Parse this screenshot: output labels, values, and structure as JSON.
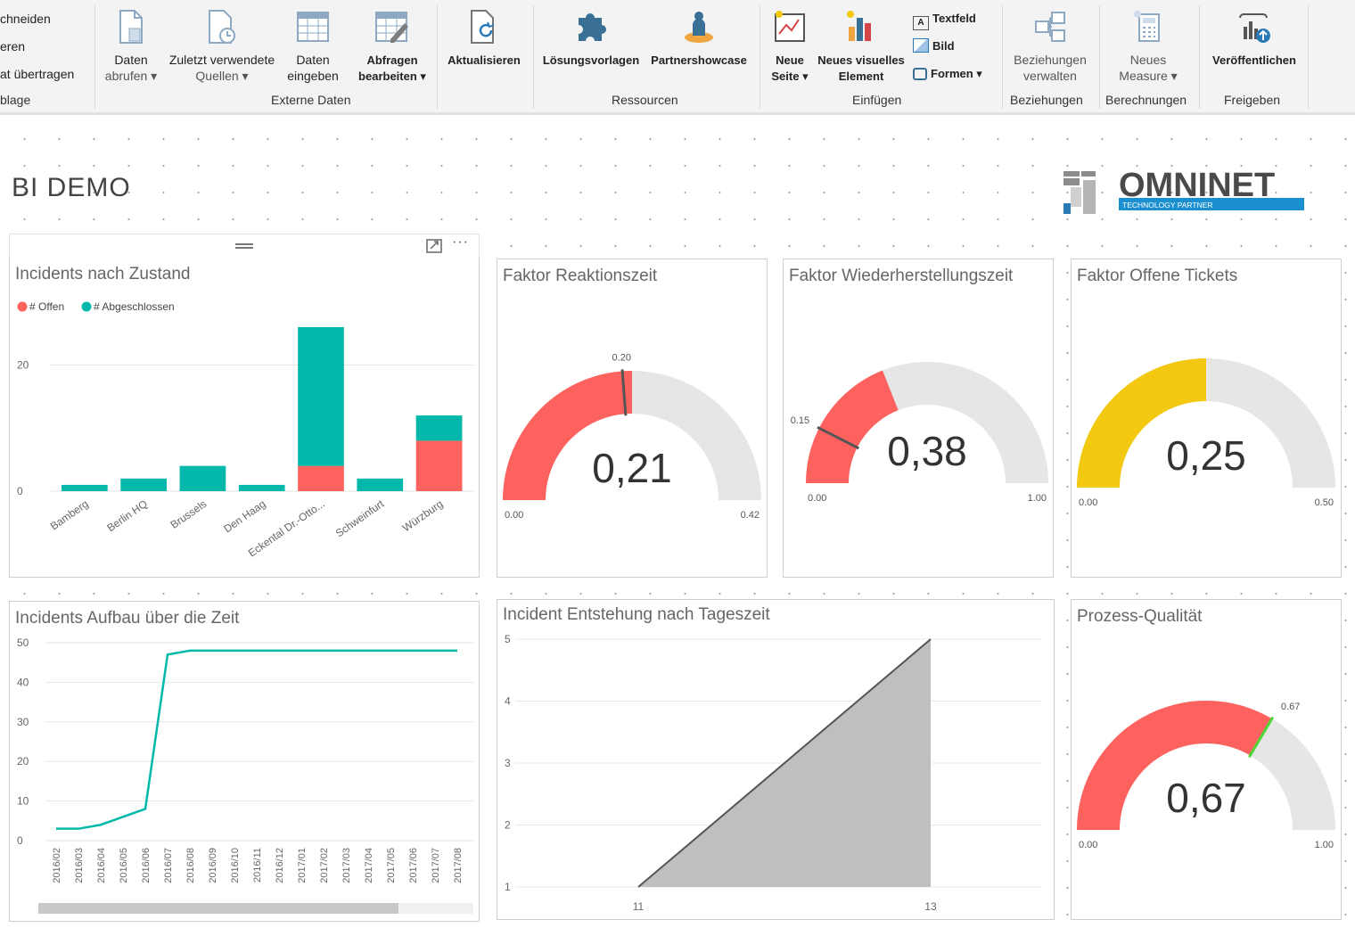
{
  "ribbon": {
    "clipboard": {
      "items": [
        "chneiden",
        "eren",
        "at übertragen"
      ],
      "group_label": "blage"
    },
    "external_data": {
      "group_label": "Externe Daten",
      "buttons": [
        {
          "line1": "Daten",
          "line2": "abrufen ▾"
        },
        {
          "line1": "Zuletzt verwendete",
          "line2": "Quellen ▾"
        },
        {
          "line1": "Daten",
          "line2": "eingeben"
        },
        {
          "line1": "Abfragen",
          "line2": "bearbeiten ▾"
        }
      ]
    },
    "refresh": {
      "label": "Aktualisieren"
    },
    "resources": {
      "group_label": "Ressourcen",
      "buttons": [
        {
          "label": "Lösungsvorlagen"
        },
        {
          "label": "Partnershowcase"
        }
      ]
    },
    "insert": {
      "group_label": "Einfügen",
      "new_page": {
        "line1": "Neue",
        "line2": "Seite ▾"
      },
      "new_visual": {
        "line1": "Neues visuelles",
        "line2": "Element"
      },
      "textbox": "Textfeld",
      "image": "Bild",
      "shapes": "Formen ▾"
    },
    "relationships": {
      "group_label": "Beziehungen",
      "button": {
        "line1": "Beziehungen",
        "line2": "verwalten"
      }
    },
    "calculations": {
      "group_label": "Berechnungen",
      "button": {
        "line1": "Neues",
        "line2": "Measure ▾"
      }
    },
    "share": {
      "group_label": "Freigeben",
      "button": {
        "label": "Veröffentlichen"
      }
    }
  },
  "report": {
    "title": "BI DEMO",
    "logo": {
      "name": "OMNINET",
      "tagline": "TECHNOLOGY PARTNER"
    }
  },
  "colors": {
    "red": "#fd625e",
    "teal": "#01b8aa",
    "yellow": "#f2c811",
    "gauge_bg": "#e6e6e6",
    "green": "#4cd836",
    "area": "#bfbfbf"
  },
  "chart_data": [
    {
      "type": "bar",
      "title": "Incidents nach Zustand",
      "categories": [
        "Bamberg",
        "Berlin HQ",
        "Brussels",
        "Den Haag",
        "Eckental Dr.-Otto...",
        "Schweinfurt",
        "Würzburg"
      ],
      "series": [
        {
          "name": "# Offen",
          "values": [
            0,
            0,
            0,
            0,
            4,
            0,
            8
          ]
        },
        {
          "name": "# Abgeschlossen",
          "values": [
            1,
            2,
            4,
            1,
            22,
            2,
            4
          ]
        }
      ],
      "yticks": [
        "0",
        "20"
      ],
      "ylim": [
        0,
        26
      ],
      "stacked": true,
      "legend": "top-left"
    },
    {
      "type": "gauge",
      "title": "Faktor Reaktionszeit",
      "value": 0.21,
      "value_label": "0,21",
      "min": 0,
      "max": 0.42,
      "min_label": "0.00",
      "max_label": "0.42",
      "target": 0.2,
      "target_label": "0.20",
      "fill": "red"
    },
    {
      "type": "gauge",
      "title": "Faktor Wiederherstellungszeit",
      "value": 0.38,
      "value_label": "0,38",
      "min": 0,
      "max": 1,
      "min_label": "0.00",
      "max_label": "1.00",
      "target": 0.15,
      "target_label": "0.15",
      "fill": "red"
    },
    {
      "type": "gauge",
      "title": "Faktor Offene Tickets",
      "value": 0.25,
      "value_label": "0,25",
      "min": 0,
      "max": 0.5,
      "min_label": "0.00",
      "max_label": "0.50",
      "fill": "yellow"
    },
    {
      "type": "line",
      "title": "Incidents Aufbau über die Zeit",
      "x": [
        "2016/02",
        "2016/03",
        "2016/04",
        "2016/05",
        "2016/06",
        "2016/07",
        "2016/08",
        "2016/09",
        "2016/10",
        "2016/11",
        "2016/12",
        "2017/01",
        "2017/02",
        "2017/03",
        "2017/04",
        "2017/05",
        "2017/06",
        "2017/07",
        "2017/08"
      ],
      "values": [
        3,
        3,
        4,
        6,
        8,
        47,
        48,
        48,
        48,
        48,
        48,
        48,
        48,
        48,
        48,
        48,
        48,
        48,
        48
      ],
      "yticks": [
        "0",
        "10",
        "20",
        "30",
        "40",
        "50"
      ],
      "ylim": [
        0,
        50
      ]
    },
    {
      "type": "area",
      "title": "Incident Entstehung nach Tageszeit",
      "x": [
        11,
        13
      ],
      "values": [
        1,
        5
      ],
      "xticks": [
        "11",
        "13"
      ],
      "yticks": [
        "1",
        "2",
        "3",
        "4",
        "5"
      ],
      "ylim": [
        1,
        5
      ]
    },
    {
      "type": "gauge",
      "title": "Prozess-Qualität",
      "value": 0.67,
      "value_label": "0,67",
      "min": 0,
      "max": 1,
      "min_label": "0.00",
      "max_label": "1.00",
      "target": 0.67,
      "target_label": "0.67",
      "fill": "red"
    }
  ]
}
